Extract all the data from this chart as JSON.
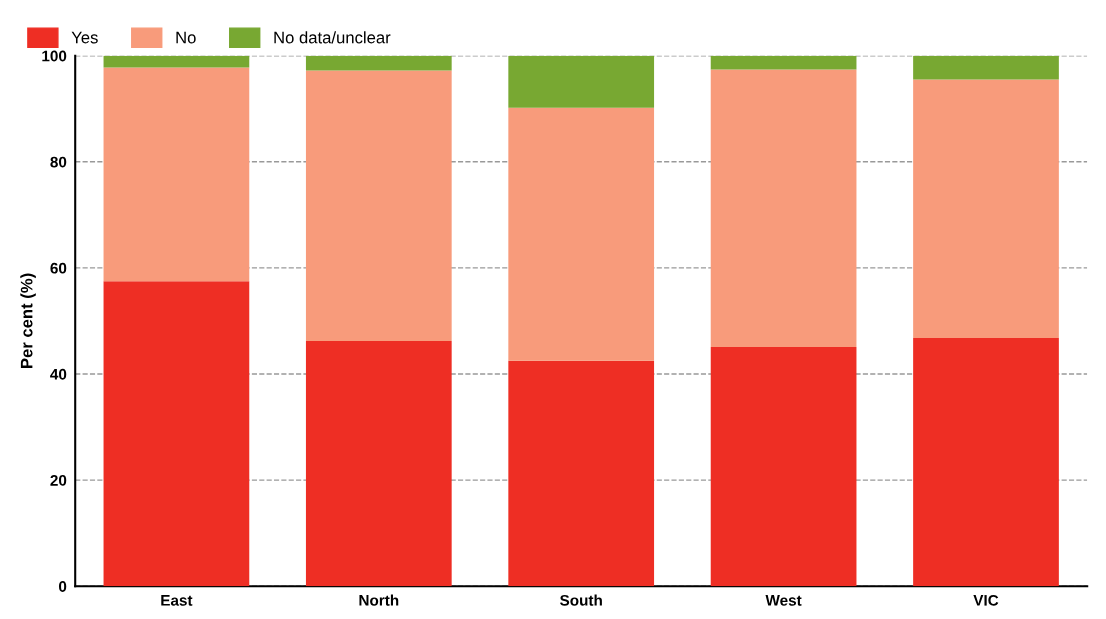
{
  "chart_data": {
    "type": "bar",
    "stacked": true,
    "ylabel": "Per cent (%)",
    "categories": [
      "East",
      "North",
      "South",
      "West",
      "VIC"
    ],
    "series": [
      {
        "name": "Yes",
        "color": "#ee2e24",
        "values": [
          57.5,
          46.2,
          42.5,
          45.1,
          46.8
        ]
      },
      {
        "name": "No",
        "color": "#f89b7b",
        "values": [
          40.3,
          51.0,
          47.7,
          52.3,
          48.7
        ]
      },
      {
        "name": "No data/unclear",
        "color": "#78a832",
        "values": [
          2.2,
          2.8,
          9.8,
          2.6,
          4.5
        ]
      }
    ],
    "ylim": [
      0,
      100
    ],
    "yticks": [
      0,
      20,
      40,
      60,
      80,
      100
    ],
    "grid": "y",
    "legend": "top left"
  }
}
